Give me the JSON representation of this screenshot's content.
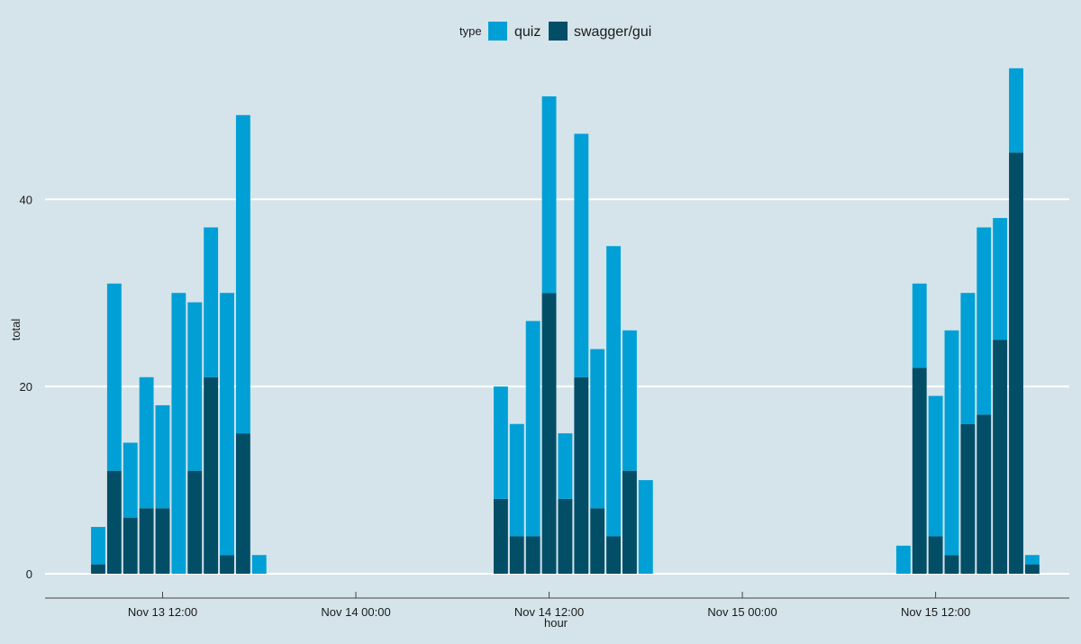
{
  "chart_data": {
    "type": "bar",
    "stacked": true,
    "xlabel": "hour",
    "ylabel": "total",
    "ylim": [
      0,
      56
    ],
    "y_ticks": [
      0,
      20,
      40
    ],
    "x_ticks": [
      {
        "hour": 12,
        "label": "Nov 13 12:00"
      },
      {
        "hour": 24,
        "label": "Nov 14 00:00"
      },
      {
        "hour": 36,
        "label": "Nov 14 12:00"
      },
      {
        "hour": 48,
        "label": "Nov 15 00:00"
      },
      {
        "hour": 60,
        "label": "Nov 15 12:00"
      }
    ],
    "x_range_hours": [
      4.7,
      68.3
    ],
    "hour_origin": "Nov 13 00:00",
    "grid": true,
    "legend": {
      "title": "type",
      "position": "top"
    },
    "series": [
      {
        "name": "swagger/gui",
        "color": "#034e67",
        "points": [
          [
            8,
            1
          ],
          [
            9,
            11
          ],
          [
            10,
            6
          ],
          [
            11,
            7
          ],
          [
            12,
            7
          ],
          [
            13,
            0
          ],
          [
            14,
            11
          ],
          [
            15,
            21
          ],
          [
            16,
            2
          ],
          [
            17,
            15
          ],
          [
            18,
            0
          ],
          [
            33,
            8
          ],
          [
            34,
            4
          ],
          [
            35,
            4
          ],
          [
            36,
            30
          ],
          [
            37,
            8
          ],
          [
            38,
            21
          ],
          [
            39,
            7
          ],
          [
            40,
            4
          ],
          [
            41,
            11
          ],
          [
            42,
            0
          ],
          [
            58,
            0
          ],
          [
            59,
            22
          ],
          [
            60,
            4
          ],
          [
            61,
            2
          ],
          [
            62,
            16
          ],
          [
            63,
            17
          ],
          [
            64,
            25
          ],
          [
            65,
            45
          ],
          [
            66,
            1
          ]
        ]
      },
      {
        "name": "quiz",
        "color": "#00a0d6",
        "points": [
          [
            8,
            4
          ],
          [
            9,
            20
          ],
          [
            10,
            8
          ],
          [
            11,
            14
          ],
          [
            12,
            11
          ],
          [
            13,
            30
          ],
          [
            14,
            18
          ],
          [
            15,
            16
          ],
          [
            16,
            28
          ],
          [
            17,
            34
          ],
          [
            18,
            2
          ],
          [
            33,
            12
          ],
          [
            34,
            12
          ],
          [
            35,
            23
          ],
          [
            36,
            21
          ],
          [
            37,
            7
          ],
          [
            38,
            26
          ],
          [
            39,
            17
          ],
          [
            40,
            31
          ],
          [
            41,
            15
          ],
          [
            42,
            10
          ],
          [
            58,
            3
          ],
          [
            59,
            9
          ],
          [
            60,
            15
          ],
          [
            61,
            24
          ],
          [
            62,
            14
          ],
          [
            63,
            20
          ],
          [
            64,
            13
          ],
          [
            65,
            9
          ],
          [
            66,
            1
          ]
        ]
      }
    ]
  }
}
